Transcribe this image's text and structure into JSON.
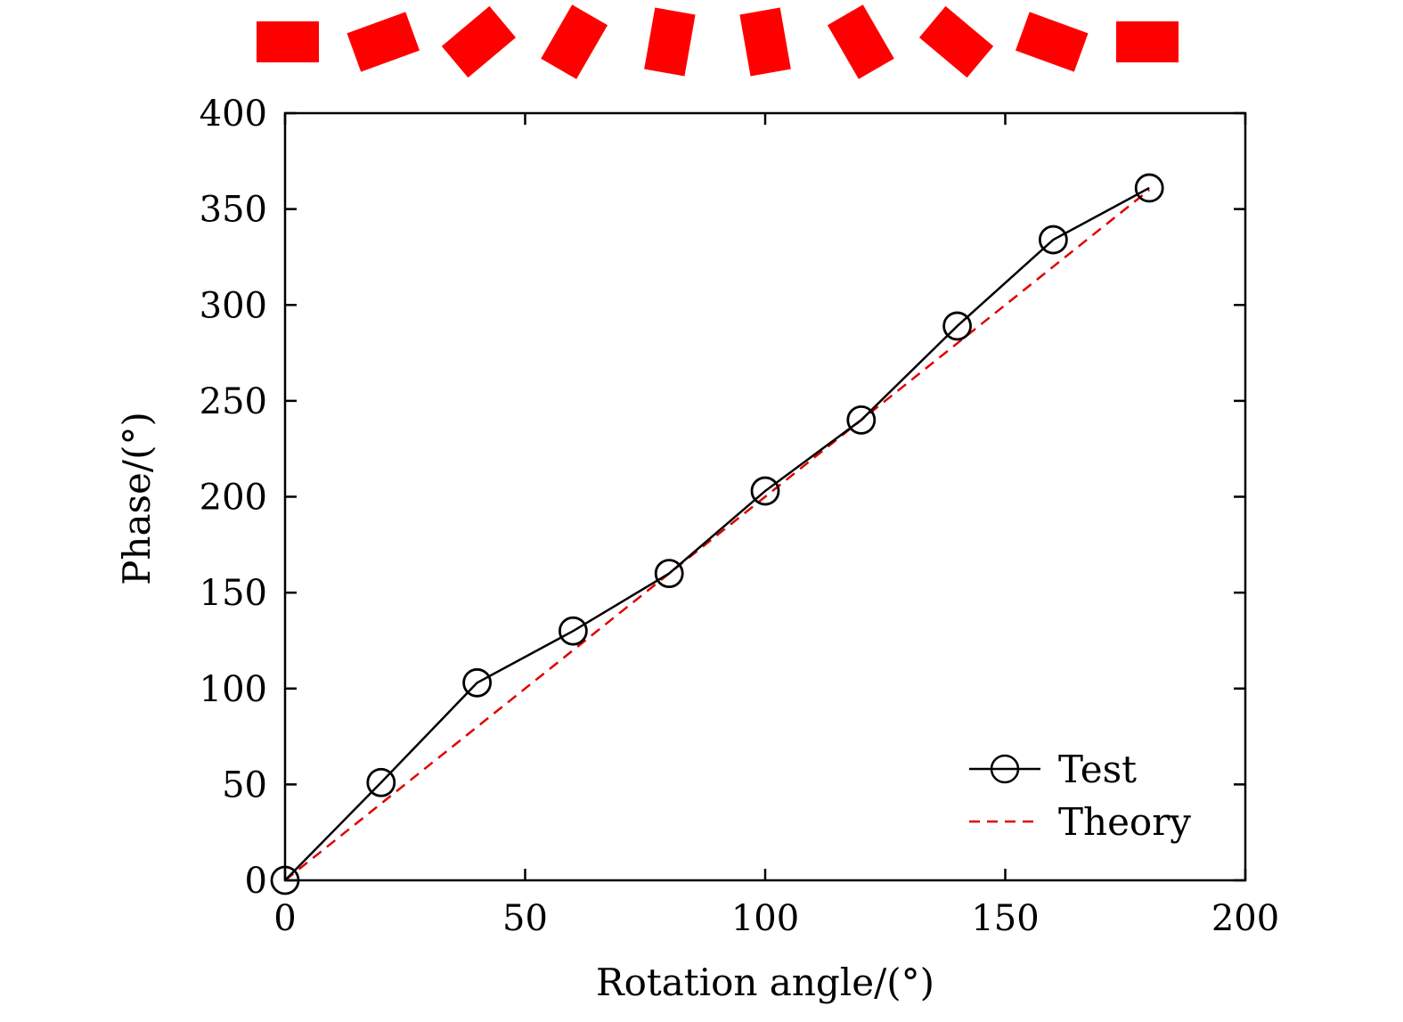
{
  "chart_data": {
    "type": "line",
    "title": "",
    "xlabel": "Rotation angle/(°)",
    "ylabel": "Phase/(°)",
    "xlim": [
      0,
      200
    ],
    "ylim": [
      0,
      400
    ],
    "xticks": [
      0,
      50,
      100,
      150,
      200
    ],
    "yticks": [
      0,
      50,
      100,
      150,
      200,
      250,
      300,
      350,
      400
    ],
    "xtick_labels": [
      "0",
      "50",
      "100",
      "150",
      "200"
    ],
    "ytick_labels": [
      "0",
      "50",
      "100",
      "150",
      "200",
      "250",
      "300",
      "350",
      "400"
    ],
    "grid": false,
    "legend_position": "bottom-right",
    "x": [
      0,
      20,
      40,
      60,
      80,
      100,
      120,
      140,
      160,
      180
    ],
    "series": [
      {
        "name": "Test",
        "style": "solid-circle-markers",
        "color": "#000000",
        "values": [
          0,
          51,
          103,
          130,
          160,
          203,
          240,
          289,
          334,
          361
        ]
      },
      {
        "name": "Theory",
        "style": "dashed",
        "color": "#e00000",
        "values": [
          0,
          40,
          80,
          120,
          160,
          200,
          240,
          280,
          320,
          360
        ]
      }
    ],
    "element_rotations_deg": [
      0,
      20,
      40,
      60,
      80,
      100,
      120,
      140,
      160,
      180
    ],
    "element_color": "#ff0000"
  }
}
